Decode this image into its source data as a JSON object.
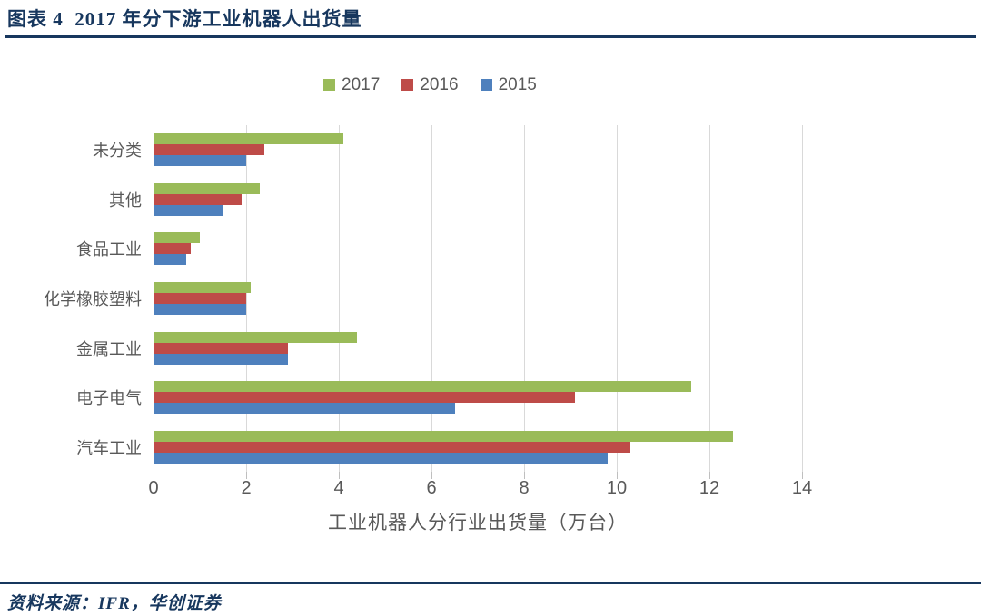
{
  "header": {
    "title": "图表 4  2017 年分下游工业机器人出货量"
  },
  "footer": {
    "source": "资料来源：IFR，华创证券"
  },
  "colors": {
    "accent_navy": "#17375E",
    "text_gray": "#595959",
    "gridline": "#D9D9D9",
    "series_2017_green": "#9ABB59",
    "series_2016_red": "#BE4B48",
    "series_2015_blue": "#4E80BD"
  },
  "chart_data": {
    "type": "bar",
    "orientation": "horizontal",
    "title": "",
    "xlabel": "工业机器人分行业出货量（万台）",
    "ylabel": "",
    "xlim": [
      0,
      14
    ],
    "xticks": [
      "0",
      "2",
      "4",
      "6",
      "8",
      "10",
      "12",
      "14"
    ],
    "grid": true,
    "legend_position": "top-center",
    "categories": [
      "未分类",
      "其他",
      "食品工业",
      "化学橡胶塑料",
      "金属工业",
      "电子电气",
      "汽车工业"
    ],
    "series": [
      {
        "name": "2017",
        "color": "#9ABB59",
        "values": [
          4.1,
          2.3,
          1.0,
          2.1,
          4.4,
          11.6,
          12.5
        ]
      },
      {
        "name": "2016",
        "color": "#BE4B48",
        "values": [
          2.4,
          1.9,
          0.8,
          2.0,
          2.9,
          9.1,
          10.3
        ]
      },
      {
        "name": "2015",
        "color": "#4E80BD",
        "values": [
          2.0,
          1.5,
          0.7,
          2.0,
          2.9,
          6.5,
          9.8
        ]
      }
    ]
  }
}
